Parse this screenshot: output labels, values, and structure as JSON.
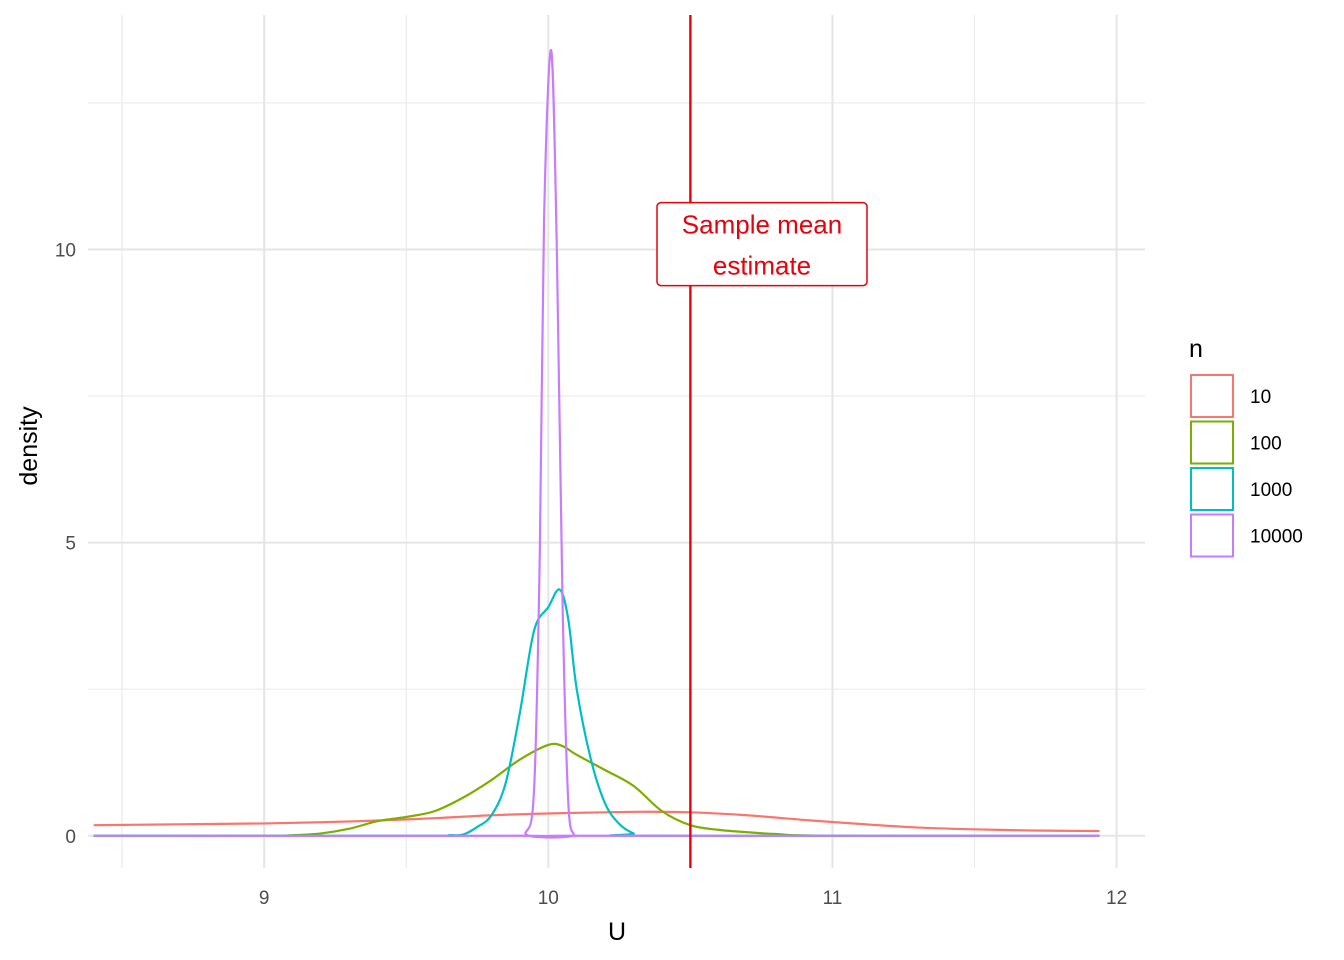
{
  "chart_data": {
    "type": "line",
    "chart_kind": "density",
    "xlabel": "U",
    "ylabel": "density",
    "xlim": [
      8.38,
      12.1
    ],
    "ylim": [
      -0.55,
      14
    ],
    "x_ticks": [
      9,
      10,
      11,
      12
    ],
    "x_tick_labels": [
      "9",
      "10",
      "11",
      "12"
    ],
    "y_ticks": [
      0,
      5,
      10
    ],
    "y_tick_labels": [
      "0",
      "5",
      "10"
    ],
    "grid": true,
    "legend": {
      "title": "n",
      "placement": "right",
      "entries": [
        "10",
        "100",
        "1000",
        "10000"
      ]
    },
    "vline": {
      "x": 10.5,
      "color": "#e8000b"
    },
    "annotation": {
      "lines": [
        "Sample mean",
        "estimate"
      ],
      "x": 10.5,
      "y": 10.1,
      "color": "#e8000b"
    },
    "series": [
      {
        "name": "10",
        "color": "#f8766d",
        "points": [
          [
            8.4,
            0.18
          ],
          [
            8.6,
            0.19
          ],
          [
            8.8,
            0.2
          ],
          [
            9.0,
            0.21
          ],
          [
            9.2,
            0.23
          ],
          [
            9.4,
            0.26
          ],
          [
            9.6,
            0.3
          ],
          [
            9.8,
            0.35
          ],
          [
            10.0,
            0.38
          ],
          [
            10.2,
            0.4
          ],
          [
            10.35,
            0.41
          ],
          [
            10.5,
            0.4
          ],
          [
            10.7,
            0.35
          ],
          [
            10.9,
            0.27
          ],
          [
            11.1,
            0.2
          ],
          [
            11.3,
            0.14
          ],
          [
            11.5,
            0.11
          ],
          [
            11.7,
            0.09
          ],
          [
            11.94,
            0.08
          ]
        ]
      },
      {
        "name": "100",
        "color": "#7cae00",
        "points": [
          [
            8.4,
            0
          ],
          [
            9.0,
            0
          ],
          [
            9.1,
            0.01
          ],
          [
            9.2,
            0.04
          ],
          [
            9.3,
            0.12
          ],
          [
            9.4,
            0.25
          ],
          [
            9.5,
            0.32
          ],
          [
            9.6,
            0.42
          ],
          [
            9.7,
            0.65
          ],
          [
            9.8,
            0.95
          ],
          [
            9.9,
            1.3
          ],
          [
            10.0,
            1.55
          ],
          [
            10.05,
            1.53
          ],
          [
            10.1,
            1.38
          ],
          [
            10.2,
            1.12
          ],
          [
            10.3,
            0.85
          ],
          [
            10.4,
            0.42
          ],
          [
            10.5,
            0.18
          ],
          [
            10.6,
            0.1
          ],
          [
            10.7,
            0.06
          ],
          [
            10.8,
            0.03
          ],
          [
            11.0,
            0
          ],
          [
            11.94,
            0
          ]
        ]
      },
      {
        "name": "1000",
        "color": "#00bfc4",
        "points": [
          [
            8.4,
            0
          ],
          [
            9.6,
            0
          ],
          [
            9.65,
            0.01
          ],
          [
            9.7,
            0.02
          ],
          [
            9.75,
            0.15
          ],
          [
            9.8,
            0.35
          ],
          [
            9.85,
            0.9
          ],
          [
            9.9,
            2.1
          ],
          [
            9.95,
            3.5
          ],
          [
            10.0,
            3.9
          ],
          [
            10.04,
            4.2
          ],
          [
            10.07,
            3.7
          ],
          [
            10.1,
            2.5
          ],
          [
            10.15,
            1.3
          ],
          [
            10.2,
            0.55
          ],
          [
            10.25,
            0.2
          ],
          [
            10.3,
            0.04
          ],
          [
            10.35,
            0
          ],
          [
            11.94,
            0
          ]
        ]
      },
      {
        "name": "10000",
        "color": "#c77cff",
        "points": [
          [
            8.4,
            0
          ],
          [
            9.88,
            0
          ],
          [
            9.92,
            0.05
          ],
          [
            9.95,
            0.8
          ],
          [
            9.97,
            4.8
          ],
          [
            9.985,
            10.5
          ],
          [
            10.01,
            13.4
          ],
          [
            10.03,
            10.0
          ],
          [
            10.05,
            4.0
          ],
          [
            10.07,
            0.6
          ],
          [
            10.09,
            0.02
          ],
          [
            10.1,
            0
          ],
          [
            11.94,
            0
          ]
        ]
      }
    ]
  }
}
